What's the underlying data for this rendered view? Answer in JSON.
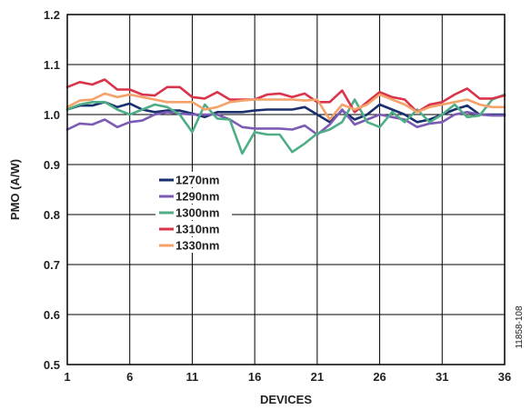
{
  "chart_data": {
    "type": "line",
    "xlabel": "DEVICES",
    "ylabel": "PMO (A/W)",
    "xlim": [
      1,
      36
    ],
    "ylim": [
      0.5,
      1.2
    ],
    "x_ticks": [
      1,
      6,
      11,
      16,
      21,
      26,
      31,
      36
    ],
    "y_ticks": [
      "0.5",
      "0.6",
      "0.7",
      "0.8",
      "0.9",
      "1.0",
      "1.1",
      "1.2"
    ],
    "grid": true,
    "legend_position": "center-left",
    "figure_id": "11858-108",
    "x": [
      1,
      2,
      3,
      4,
      5,
      6,
      7,
      8,
      9,
      10,
      11,
      12,
      13,
      14,
      15,
      16,
      17,
      18,
      19,
      20,
      21,
      22,
      23,
      24,
      25,
      26,
      27,
      28,
      29,
      30,
      31,
      32,
      33,
      34,
      35,
      36
    ],
    "series": [
      {
        "name": "1270nm",
        "color": "#1a2f6e",
        "values": [
          1.01,
          1.018,
          1.018,
          1.025,
          1.015,
          1.022,
          1.01,
          1.005,
          1.008,
          1.008,
          1.002,
          0.995,
          1.005,
          1.005,
          1.005,
          1.008,
          1.01,
          1.01,
          1.01,
          1.015,
          1.0,
          0.985,
          1.008,
          0.99,
          1.0,
          1.02,
          1.01,
          1.0,
          0.985,
          0.99,
          1.0,
          1.01,
          1.018,
          1.0,
          1.0,
          1.0
        ]
      },
      {
        "name": "1290nm",
        "color": "#7c5bb4",
        "values": [
          0.97,
          0.982,
          0.98,
          0.99,
          0.975,
          0.985,
          0.988,
          1.0,
          1.005,
          1.002,
          1.0,
          1.0,
          1.0,
          0.99,
          0.975,
          0.972,
          0.972,
          0.972,
          0.97,
          0.978,
          0.96,
          0.98,
          1.01,
          0.98,
          0.99,
          1.0,
          0.995,
          0.99,
          0.975,
          0.982,
          0.985,
          1.0,
          1.005,
          1.0,
          0.998,
          0.998
        ]
      },
      {
        "name": "1300nm",
        "color": "#4fae86",
        "values": [
          1.01,
          1.02,
          1.025,
          1.025,
          1.01,
          1.0,
          1.01,
          1.02,
          1.015,
          1.0,
          0.965,
          1.02,
          0.992,
          0.99,
          0.922,
          0.965,
          0.96,
          0.96,
          0.925,
          0.942,
          0.962,
          0.97,
          0.985,
          1.03,
          0.985,
          0.975,
          1.005,
          0.985,
          1.01,
          0.985,
          1.0,
          1.02,
          0.995,
          0.998,
          1.03,
          1.04
        ]
      },
      {
        "name": "1310nm",
        "color": "#d9344a",
        "values": [
          1.055,
          1.065,
          1.06,
          1.07,
          1.05,
          1.05,
          1.04,
          1.038,
          1.055,
          1.055,
          1.035,
          1.032,
          1.045,
          1.03,
          1.03,
          1.03,
          1.04,
          1.042,
          1.035,
          1.042,
          1.025,
          1.025,
          1.048,
          1.005,
          1.025,
          1.045,
          1.035,
          1.03,
          1.005,
          1.02,
          1.025,
          1.04,
          1.052,
          1.032,
          1.032,
          1.038
        ]
      },
      {
        "name": "1330nm",
        "color": "#f4a26a",
        "values": [
          1.015,
          1.028,
          1.03,
          1.042,
          1.035,
          1.04,
          1.035,
          1.03,
          1.025,
          1.025,
          1.025,
          1.01,
          1.015,
          1.025,
          1.028,
          1.03,
          1.03,
          1.03,
          1.03,
          1.028,
          1.03,
          0.99,
          1.02,
          1.01,
          1.02,
          1.04,
          1.03,
          1.02,
          1.005,
          1.015,
          1.02,
          1.025,
          1.03,
          1.02,
          1.015,
          1.015
        ]
      }
    ]
  }
}
